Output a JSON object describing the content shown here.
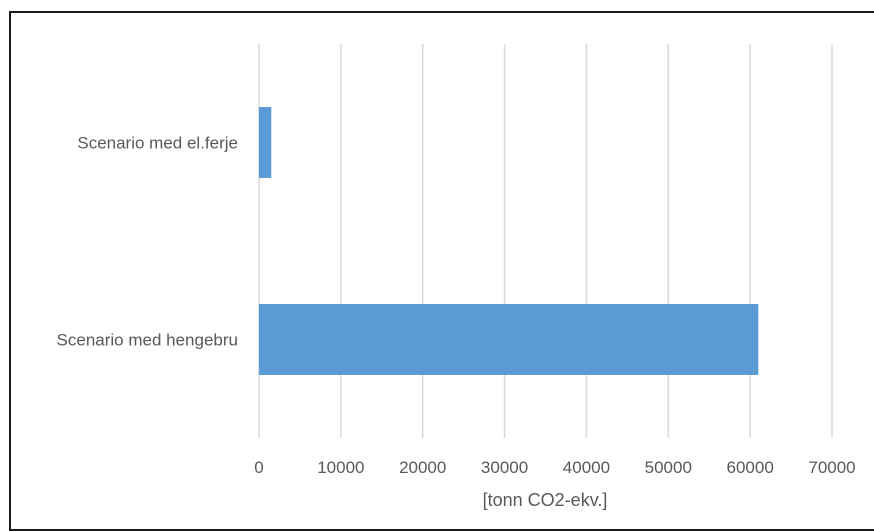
{
  "chart_data": {
    "type": "bar",
    "orientation": "horizontal",
    "categories": [
      "Scenario med el.ferje",
      "Scenario med hengebru"
    ],
    "values": [
      1500,
      61000
    ],
    "xlabel": "[tonn CO2-ekv.]",
    "ylabel": "",
    "xlim": [
      0,
      70000
    ],
    "xticks": [
      0,
      10000,
      20000,
      30000,
      40000,
      50000,
      60000,
      70000
    ],
    "grid": "vertical",
    "legend": "none",
    "colors": {
      "bar": "#5b9bd5",
      "grid": "#d9d9d9",
      "text": "#595959"
    }
  }
}
